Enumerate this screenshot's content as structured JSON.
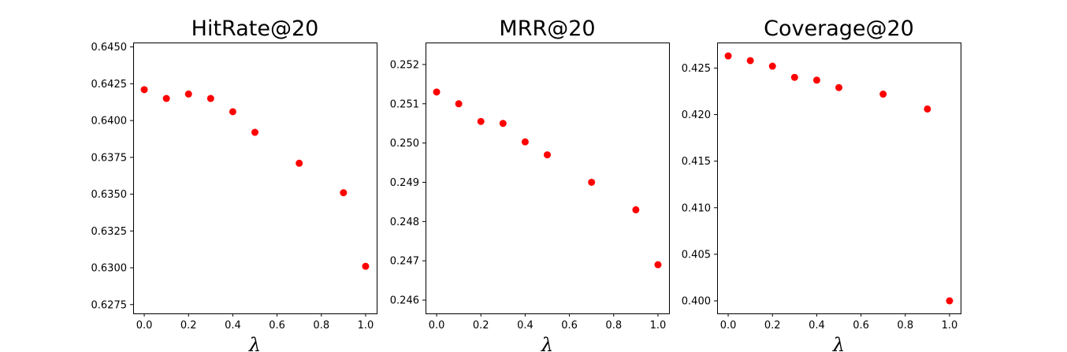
{
  "chart_data": [
    {
      "type": "scatter",
      "title": "HitRate@20",
      "xlabel": "λ",
      "ylabel": "",
      "marker_color": "#ff0000",
      "x": [
        0.0,
        0.1,
        0.2,
        0.3,
        0.4,
        0.5,
        0.7,
        0.9,
        1.0
      ],
      "y": [
        0.6421,
        0.6415,
        0.6418,
        0.6415,
        0.6406,
        0.6392,
        0.6371,
        0.6351,
        0.6301
      ],
      "xlim": [
        -0.05,
        1.05
      ],
      "ylim": [
        0.6269,
        0.6453
      ],
      "xticks": [
        0.0,
        0.2,
        0.4,
        0.6,
        0.8,
        1.0
      ],
      "xtick_labels": [
        "0.0",
        "0.2",
        "0.4",
        "0.6",
        "0.8",
        "1.0"
      ],
      "yticks": [
        0.6275,
        0.63,
        0.6325,
        0.635,
        0.6375,
        0.64,
        0.6425,
        0.645
      ],
      "ytick_labels": [
        "0.6275",
        "0.6300",
        "0.6325",
        "0.6350",
        "0.6375",
        "0.6400",
        "0.6425",
        "0.6450"
      ]
    },
    {
      "type": "scatter",
      "title": "MRR@20",
      "xlabel": "λ",
      "ylabel": "",
      "marker_color": "#ff0000",
      "x": [
        0.0,
        0.1,
        0.2,
        0.3,
        0.4,
        0.5,
        0.7,
        0.9,
        1.0
      ],
      "y": [
        0.2513,
        0.251,
        0.25055,
        0.2505,
        0.25003,
        0.2497,
        0.249,
        0.2483,
        0.2469
      ],
      "xlim": [
        -0.05,
        1.05
      ],
      "ylim": [
        0.24566,
        0.25256
      ],
      "xticks": [
        0.0,
        0.2,
        0.4,
        0.6,
        0.8,
        1.0
      ],
      "xtick_labels": [
        "0.0",
        "0.2",
        "0.4",
        "0.6",
        "0.8",
        "1.0"
      ],
      "yticks": [
        0.246,
        0.247,
        0.248,
        0.249,
        0.25,
        0.251,
        0.252
      ],
      "ytick_labels": [
        "0.246",
        "0.247",
        "0.248",
        "0.249",
        "0.250",
        "0.251",
        "0.252"
      ]
    },
    {
      "type": "scatter",
      "title": "Coverage@20",
      "xlabel": "λ",
      "ylabel": "",
      "marker_color": "#ff0000",
      "x": [
        0.0,
        0.1,
        0.2,
        0.3,
        0.4,
        0.5,
        0.7,
        0.9,
        1.0
      ],
      "y": [
        0.4263,
        0.4258,
        0.4252,
        0.424,
        0.4237,
        0.4229,
        0.4222,
        0.4206,
        0.4
      ],
      "xlim": [
        -0.05,
        1.05
      ],
      "ylim": [
        0.39865,
        0.42774
      ],
      "xticks": [
        0.0,
        0.2,
        0.4,
        0.6,
        0.8,
        1.0
      ],
      "xtick_labels": [
        "0.0",
        "0.2",
        "0.4",
        "0.6",
        "0.8",
        "1.0"
      ],
      "yticks": [
        0.4,
        0.405,
        0.41,
        0.415,
        0.42,
        0.425
      ],
      "ytick_labels": [
        "0.400",
        "0.405",
        "0.410",
        "0.415",
        "0.420",
        "0.425"
      ]
    }
  ]
}
